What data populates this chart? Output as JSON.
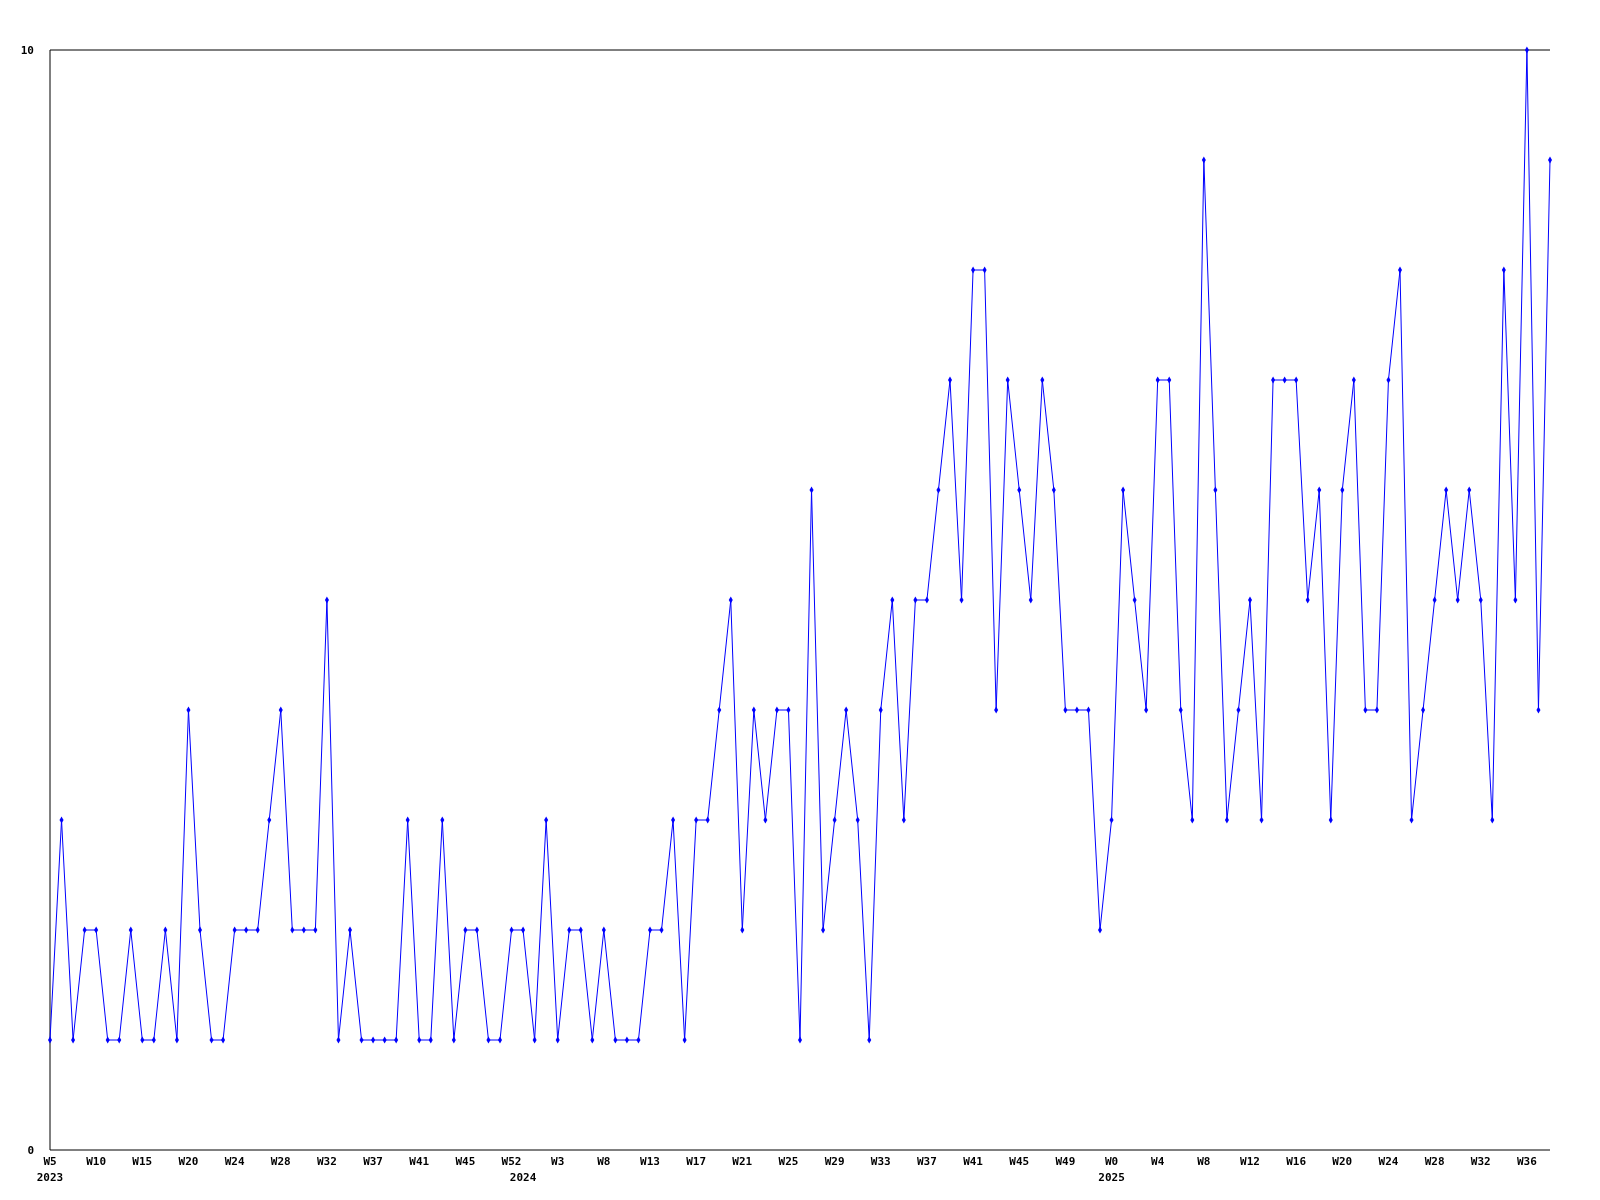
{
  "chart_data": {
    "type": "line",
    "categories": [
      "W5\n2023",
      null,
      null,
      null,
      "W10",
      null,
      null,
      null,
      "W15",
      null,
      null,
      null,
      "W20",
      null,
      null,
      null,
      "W24",
      null,
      null,
      null,
      "W28",
      null,
      null,
      null,
      "W32",
      null,
      null,
      null,
      "W37",
      null,
      null,
      null,
      "W41",
      null,
      null,
      null,
      "W45",
      null,
      null,
      null,
      "W52",
      "\n2024",
      null,
      null,
      "W3",
      null,
      null,
      null,
      "W8",
      null,
      null,
      null,
      "W13",
      null,
      null,
      null,
      "W17",
      null,
      null,
      null,
      "W21",
      null,
      null,
      null,
      "W25",
      null,
      null,
      null,
      "W29",
      null,
      null,
      null,
      "W33",
      null,
      null,
      null,
      "W37",
      null,
      null,
      null,
      "W41",
      null,
      null,
      null,
      "W45",
      null,
      null,
      null,
      "W49",
      null,
      null,
      null,
      "W0\n2025",
      null,
      null,
      null,
      "W4",
      null,
      null,
      null,
      "W8",
      null,
      null,
      null,
      "W12",
      null,
      null,
      null,
      "W16",
      null,
      null,
      null,
      "W20",
      null,
      null,
      null,
      "W24",
      null,
      null,
      null,
      "W28",
      null,
      null,
      null,
      "W32",
      null,
      null,
      null,
      "W36",
      null,
      null
    ],
    "series": [
      {
        "color": "#0000ff",
        "values": [
          1,
          3,
          1,
          2,
          2,
          1,
          1,
          2,
          1,
          1,
          2,
          1,
          4,
          2,
          1,
          1,
          2,
          2,
          2,
          3,
          4,
          2,
          2,
          2,
          5,
          1,
          2,
          1,
          1,
          1,
          1,
          3,
          1,
          1,
          3,
          1,
          2,
          2,
          1,
          1,
          2,
          2,
          1,
          3,
          1,
          2,
          2,
          1,
          2,
          1,
          1,
          1,
          2,
          2,
          3,
          1,
          3,
          3,
          4,
          5,
          2,
          4,
          3,
          4,
          4,
          1,
          6,
          2,
          3,
          4,
          3,
          1,
          4,
          5,
          3,
          5,
          5,
          6,
          7,
          5,
          8,
          8,
          4,
          7,
          6,
          5,
          7,
          6,
          4,
          4,
          4,
          2,
          3,
          6,
          5,
          4,
          7,
          7,
          4,
          3,
          9,
          6,
          3,
          4,
          5,
          3,
          7,
          7,
          7,
          5,
          6,
          3,
          6,
          7,
          4,
          4,
          7,
          8,
          3,
          4,
          5,
          6,
          5,
          6,
          5,
          3,
          8,
          5,
          10,
          4,
          9
        ]
      }
    ],
    "ylim": [
      0,
      10
    ],
    "yticks": [
      0,
      10
    ],
    "grid": false,
    "marker": "diamond",
    "line_style": "solid"
  }
}
